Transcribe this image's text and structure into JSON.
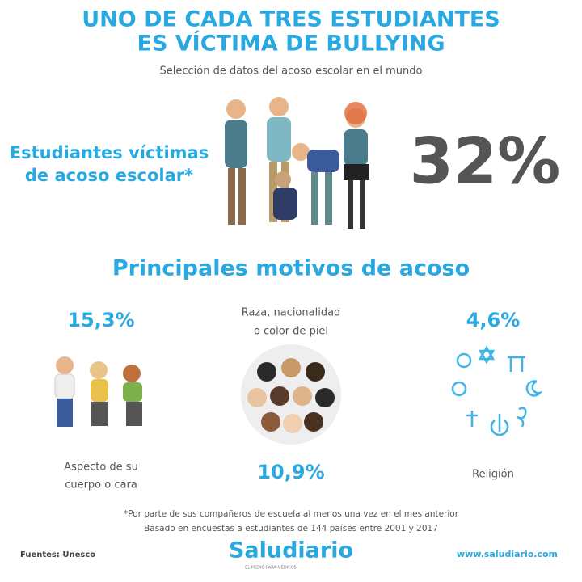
{
  "header": {
    "title_lines": [
      "UNO DE CADA TRES ESTUDIANTES",
      "ES VÍCTIMA DE BULLYING"
    ],
    "subtitle": "Selección de datos del acoso escolar en el mundo"
  },
  "headline_stat": {
    "label_lines": [
      "Estudiantes víctimas",
      "de acoso escolar*"
    ],
    "value": "32%"
  },
  "motives": {
    "title": "Principales motivos de acoso",
    "items": [
      {
        "value": "15,3%",
        "label_lines": [
          "Aspecto de su",
          "cuerpo o cara"
        ]
      },
      {
        "value": "10,9%",
        "label_lines": [
          "Raza, nacionalidad",
          "o color de piel"
        ]
      },
      {
        "value": "4,6%",
        "label_lines": [
          "Religión"
        ]
      }
    ]
  },
  "footnotes": [
    "*Por parte de sus compañeros de escuela al menos una vez en el mes anterior",
    "Basado en encuestas a estudiantes de 144 países entre 2001 y 2017"
  ],
  "footer": {
    "sources": "Fuentes: Unesco",
    "logo": "Saludiario",
    "tagline": "EL MEDIO PARA MÉDICOS",
    "url": "www.saludiario.com"
  }
}
